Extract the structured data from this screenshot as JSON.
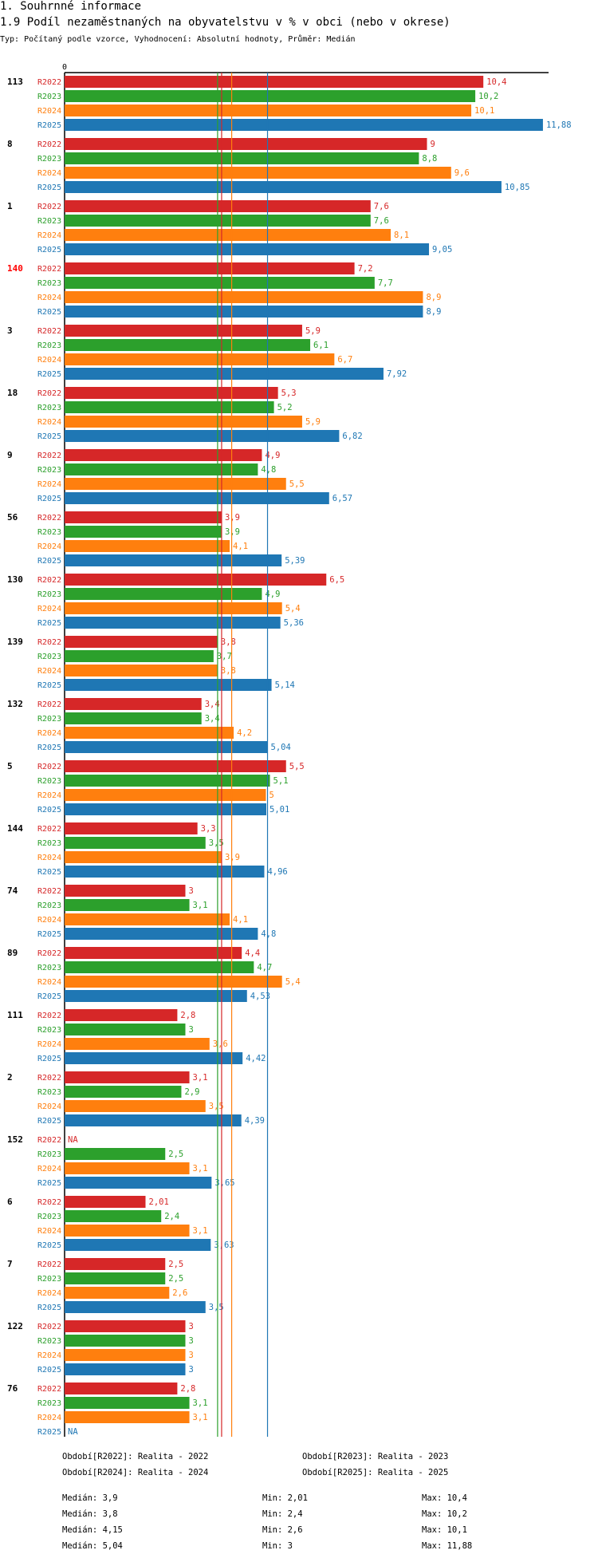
{
  "header": {
    "section": "1. Souhrnné informace",
    "title": "1.9 Podíl nezaměstnaných na obyvatelstvu v % v obci (nebo v okrese)",
    "subtitle": "Typ: Počítaný podle vzorce, Vyhodnocení: Absolutní hodnoty, Průměr: Medián"
  },
  "colors": {
    "R2022": "#d62728",
    "R2023": "#2ca02c",
    "R2024": "#ff7f0e",
    "R2025": "#1f77b4",
    "highlight": "#ff0000"
  },
  "chart_data": {
    "type": "bar",
    "orientation": "horizontal",
    "title": "1.9 Podíl nezaměstnaných na obyvatelstvu v % v obci (nebo v okrese)",
    "axis_zero_label": "0",
    "xlim": [
      0,
      12
    ],
    "series_names": [
      "R2022",
      "R2023",
      "R2024",
      "R2025"
    ],
    "groups": [
      {
        "id": "113",
        "highlight": false,
        "values": [
          10.4,
          10.2,
          10.1,
          11.88
        ],
        "labels": [
          "10,4",
          "10,2",
          "10,1",
          "11,88"
        ]
      },
      {
        "id": "8",
        "highlight": false,
        "values": [
          9,
          8.8,
          9.6,
          10.85
        ],
        "labels": [
          "9",
          "8,8",
          "9,6",
          "10,85"
        ]
      },
      {
        "id": "1",
        "highlight": false,
        "values": [
          7.6,
          7.6,
          8.1,
          9.05
        ],
        "labels": [
          "7,6",
          "7,6",
          "8,1",
          "9,05"
        ]
      },
      {
        "id": "140",
        "highlight": true,
        "values": [
          7.2,
          7.7,
          8.9,
          8.9
        ],
        "labels": [
          "7,2",
          "7,7",
          "8,9",
          "8,9"
        ]
      },
      {
        "id": "3",
        "highlight": false,
        "values": [
          5.9,
          6.1,
          6.7,
          7.92
        ],
        "labels": [
          "5,9",
          "6,1",
          "6,7",
          "7,92"
        ]
      },
      {
        "id": "18",
        "highlight": false,
        "values": [
          5.3,
          5.2,
          5.9,
          6.82
        ],
        "labels": [
          "5,3",
          "5,2",
          "5,9",
          "6,82"
        ]
      },
      {
        "id": "9",
        "highlight": false,
        "values": [
          4.9,
          4.8,
          5.5,
          6.57
        ],
        "labels": [
          "4,9",
          "4,8",
          "5,5",
          "6,57"
        ]
      },
      {
        "id": "56",
        "highlight": false,
        "values": [
          3.9,
          3.9,
          4.1,
          5.39
        ],
        "labels": [
          "3,9",
          "3,9",
          "4,1",
          "5,39"
        ]
      },
      {
        "id": "130",
        "highlight": false,
        "values": [
          6.5,
          4.9,
          5.4,
          5.36
        ],
        "labels": [
          "6,5",
          "4,9",
          "5,4",
          "5,36"
        ]
      },
      {
        "id": "139",
        "highlight": false,
        "values": [
          3.8,
          3.7,
          3.8,
          5.14
        ],
        "labels": [
          "3,8",
          "3,7",
          "3,8",
          "5,14"
        ]
      },
      {
        "id": "132",
        "highlight": false,
        "values": [
          3.4,
          3.4,
          4.2,
          5.04
        ],
        "labels": [
          "3,4",
          "3,4",
          "4,2",
          "5,04"
        ]
      },
      {
        "id": "5",
        "highlight": false,
        "values": [
          5.5,
          5.1,
          5,
          5.01
        ],
        "labels": [
          "5,5",
          "5,1",
          "5",
          "5,01"
        ]
      },
      {
        "id": "144",
        "highlight": false,
        "values": [
          3.3,
          3.5,
          3.9,
          4.96
        ],
        "labels": [
          "3,3",
          "3,5",
          "3,9",
          "4,96"
        ]
      },
      {
        "id": "74",
        "highlight": false,
        "values": [
          3,
          3.1,
          4.1,
          4.8
        ],
        "labels": [
          "3",
          "3,1",
          "4,1",
          "4,8"
        ]
      },
      {
        "id": "89",
        "highlight": false,
        "values": [
          4.4,
          4.7,
          5.4,
          4.53
        ],
        "labels": [
          "4,4",
          "4,7",
          "5,4",
          "4,53"
        ]
      },
      {
        "id": "111",
        "highlight": false,
        "values": [
          2.8,
          3,
          3.6,
          4.42
        ],
        "labels": [
          "2,8",
          "3",
          "3,6",
          "4,42"
        ]
      },
      {
        "id": "2",
        "highlight": false,
        "values": [
          3.1,
          2.9,
          3.5,
          4.39
        ],
        "labels": [
          "3,1",
          "2,9",
          "3,5",
          "4,39"
        ]
      },
      {
        "id": "152",
        "highlight": false,
        "values": [
          null,
          2.5,
          3.1,
          3.65
        ],
        "labels": [
          "NA",
          "2,5",
          "3,1",
          "3,65"
        ]
      },
      {
        "id": "6",
        "highlight": false,
        "values": [
          2.01,
          2.4,
          3.1,
          3.63
        ],
        "labels": [
          "2,01",
          "2,4",
          "3,1",
          "3,63"
        ]
      },
      {
        "id": "7",
        "highlight": false,
        "values": [
          2.5,
          2.5,
          2.6,
          3.5
        ],
        "labels": [
          "2,5",
          "2,5",
          "2,6",
          "3,5"
        ]
      },
      {
        "id": "122",
        "highlight": false,
        "values": [
          3,
          3,
          3,
          3
        ],
        "labels": [
          "3",
          "3",
          "3",
          "3"
        ]
      },
      {
        "id": "76",
        "highlight": false,
        "values": [
          2.8,
          3.1,
          3.1,
          null
        ],
        "labels": [
          "2,8",
          "3,1",
          "3,1",
          "NA"
        ]
      }
    ],
    "median_lines": [
      {
        "series": "R2022",
        "value": 3.9
      },
      {
        "series": "R2023",
        "value": 3.8
      },
      {
        "series": "R2024",
        "value": 4.15
      },
      {
        "series": "R2025",
        "value": 5.04
      }
    ]
  },
  "legend": {
    "r2022": "Období[R2022]: Realita - 2022",
    "r2023": "Období[R2023]: Realita - 2023",
    "r2024": "Období[R2024]: Realita - 2024",
    "r2025": "Období[R2025]: Realita - 2025"
  },
  "stats": {
    "r2022": {
      "median": "Medián: 3,9",
      "min": "Min: 2,01",
      "max": "Max: 10,4"
    },
    "r2023": {
      "median": "Medián: 3,8",
      "min": "Min: 2,4",
      "max": "Max: 10,2"
    },
    "r2024": {
      "median": "Medián: 4,15",
      "min": "Min: 2,6",
      "max": "Max: 10,1"
    },
    "r2025": {
      "median": "Medián: 5,04",
      "min": "Min: 3",
      "max": "Max: 11,88"
    }
  }
}
